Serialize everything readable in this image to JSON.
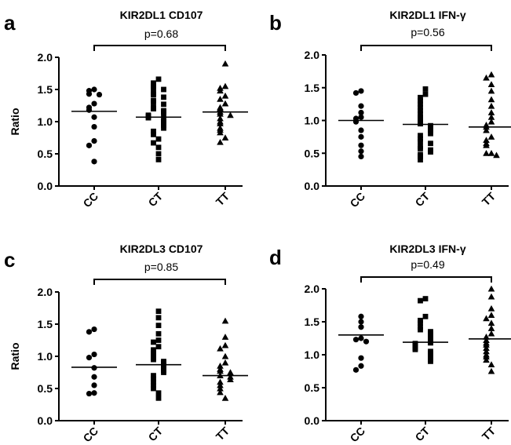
{
  "chart_data": [
    {
      "type": "scatter",
      "panel": "a",
      "title": "KIR2DL1 CD107",
      "ylabel": "Ratio",
      "ylim": [
        0,
        2.0
      ],
      "yticks": [
        "0.0",
        "0.5",
        "1.0",
        "1.5",
        "2.0"
      ],
      "categories": [
        "CC",
        "CT",
        "TT"
      ],
      "pvalue": "p=0.68",
      "markers": [
        "circle",
        "square",
        "triangle"
      ],
      "medians": [
        1.16,
        1.07,
        1.15
      ],
      "series": [
        {
          "values": [
            1.5,
            1.48,
            1.43,
            1.42,
            1.28,
            1.22,
            1.18,
            1.07,
            0.92,
            0.7,
            0.63,
            0.38
          ]
        },
        {
          "values": [
            1.66,
            1.6,
            1.55,
            1.52,
            1.5,
            1.44,
            1.42,
            1.38,
            1.33,
            1.3,
            1.27,
            1.22,
            1.2,
            1.17,
            1.15,
            1.12,
            1.1,
            1.08,
            1.06,
            1.03,
            1.0,
            0.97,
            0.94,
            0.9,
            0.85,
            0.8,
            0.73,
            0.67,
            0.6,
            0.5,
            0.41
          ]
        },
        {
          "values": [
            1.9,
            1.55,
            1.52,
            1.48,
            1.4,
            1.35,
            1.28,
            1.22,
            1.2,
            1.15,
            1.12,
            1.1,
            1.05,
            1.0,
            0.97,
            0.9,
            0.87,
            0.83,
            0.75,
            0.68
          ]
        }
      ]
    },
    {
      "type": "scatter",
      "panel": "b",
      "title": "KIR2DL1 IFN-γ",
      "ylabel": "",
      "ylim": [
        0,
        2.0
      ],
      "yticks": [
        "0.0",
        "0.5",
        "1.0",
        "1.5",
        "2.0"
      ],
      "categories": [
        "CC",
        "CT",
        "TT"
      ],
      "pvalue": "p=0.56",
      "markers": [
        "circle",
        "square",
        "triangle"
      ],
      "medians": [
        1.0,
        0.94,
        0.9
      ],
      "series": [
        {
          "values": [
            1.45,
            1.42,
            1.22,
            1.12,
            1.05,
            1.03,
            0.98,
            0.85,
            0.75,
            0.62,
            0.53,
            0.45
          ]
        },
        {
          "values": [
            1.48,
            1.4,
            1.35,
            1.3,
            1.25,
            1.2,
            1.15,
            1.1,
            1.05,
            1.02,
            0.98,
            0.95,
            0.92,
            0.9,
            0.87,
            0.85,
            0.8,
            0.77,
            0.72,
            0.68,
            0.65,
            0.6,
            0.57,
            0.55,
            0.52,
            0.48,
            0.45,
            0.4
          ]
        },
        {
          "values": [
            1.7,
            1.65,
            1.55,
            1.45,
            1.32,
            1.22,
            1.12,
            1.05,
            0.98,
            0.93,
            0.9,
            0.85,
            0.75,
            0.7,
            0.65,
            0.62,
            0.5,
            0.5,
            0.47
          ]
        }
      ]
    },
    {
      "type": "scatter",
      "panel": "c",
      "title": "KIR2DL3 CD107",
      "ylabel": "Ratio",
      "ylim": [
        0,
        2.0
      ],
      "yticks": [
        "0.0",
        "0.5",
        "1.0",
        "1.5",
        "2.0"
      ],
      "categories": [
        "CC",
        "CT",
        "TT"
      ],
      "pvalue": "p=0.85",
      "markers": [
        "circle",
        "square",
        "triangle"
      ],
      "medians": [
        0.83,
        0.87,
        0.7
      ],
      "series": [
        {
          "values": [
            1.42,
            1.38,
            1.03,
            0.98,
            0.82,
            0.68,
            0.55,
            0.43,
            0.42
          ]
        },
        {
          "values": [
            1.7,
            1.6,
            1.48,
            1.35,
            1.25,
            1.22,
            1.15,
            1.1,
            1.05,
            1.02,
            0.98,
            0.95,
            0.92,
            0.9,
            0.87,
            0.85,
            0.82,
            0.78,
            0.75,
            0.7,
            0.65,
            0.6,
            0.55,
            0.5,
            0.43,
            0.35
          ]
        },
        {
          "values": [
            1.55,
            1.3,
            1.17,
            1.12,
            1.0,
            0.9,
            0.85,
            0.8,
            0.77,
            0.75,
            0.7,
            0.68,
            0.64,
            0.6,
            0.55,
            0.5,
            0.44,
            0.35
          ]
        }
      ]
    },
    {
      "type": "scatter",
      "panel": "d",
      "title": "KIR2DL3 IFN-γ",
      "ylabel": "",
      "ylim": [
        0,
        2.0
      ],
      "yticks": [
        "0.0",
        "0.5",
        "1.0",
        "1.5",
        "2.0"
      ],
      "categories": [
        "CC",
        "CT",
        "TT"
      ],
      "pvalue": "p=0.49",
      "markers": [
        "circle",
        "square",
        "triangle"
      ],
      "medians": [
        1.3,
        1.19,
        1.24
      ],
      "series": [
        {
          "values": [
            1.58,
            1.5,
            1.42,
            1.25,
            1.23,
            1.2,
            0.95,
            0.83,
            0.77
          ]
        },
        {
          "values": [
            1.85,
            1.82,
            1.58,
            1.52,
            1.48,
            1.42,
            1.38,
            1.35,
            1.32,
            1.3,
            1.28,
            1.25,
            1.22,
            1.2,
            1.18,
            1.17,
            1.15,
            1.13,
            1.1,
            1.08,
            1.05,
            1.02,
            1.0,
            0.97,
            0.93,
            0.9
          ]
        },
        {
          "values": [
            2.0,
            1.88,
            1.7,
            1.6,
            1.55,
            1.48,
            1.4,
            1.32,
            1.27,
            1.22,
            1.18,
            1.15,
            1.1,
            1.05,
            1.0,
            0.97,
            0.92,
            0.85,
            0.75
          ]
        }
      ]
    }
  ]
}
